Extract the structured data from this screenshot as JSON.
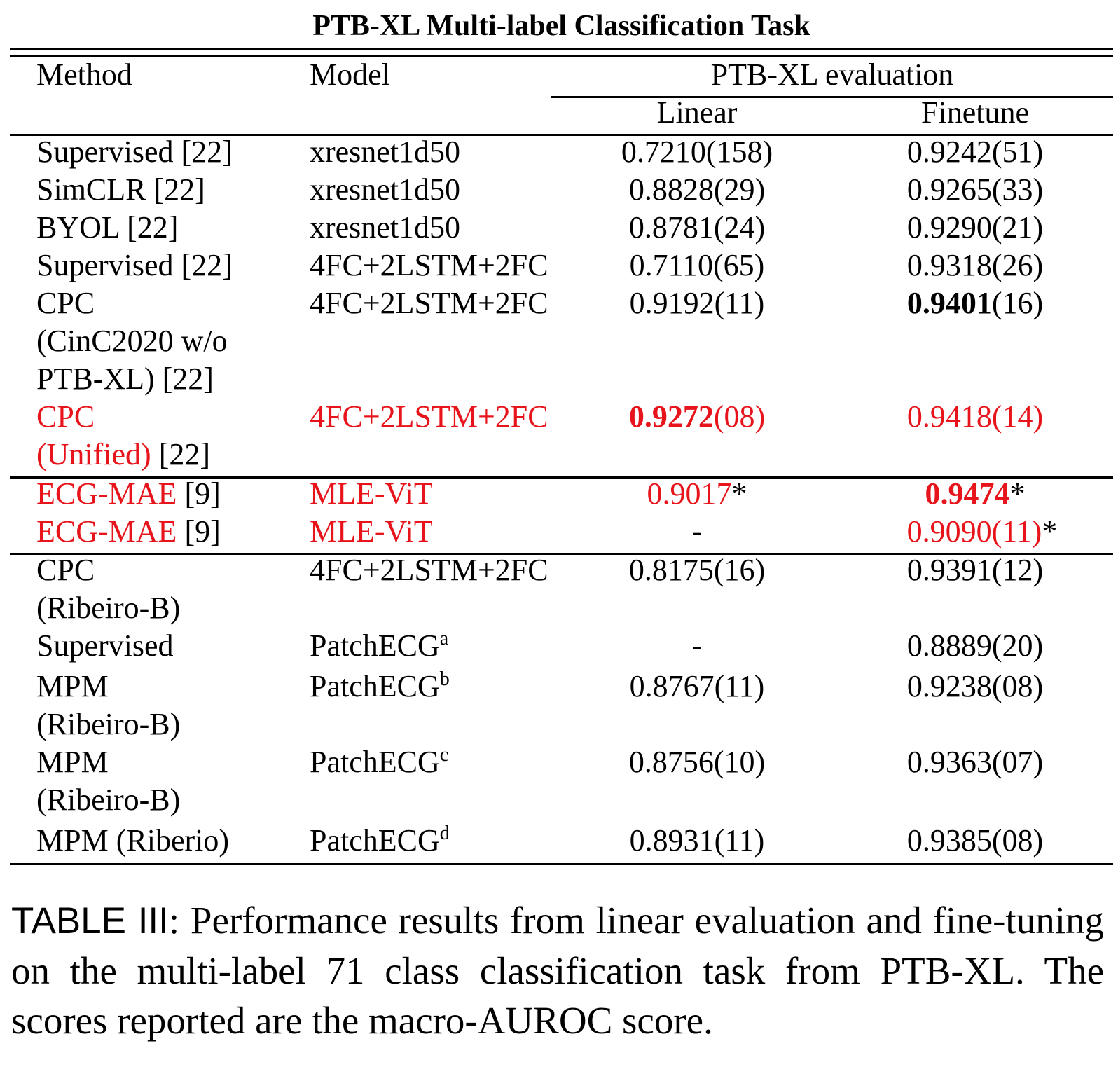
{
  "title": "PTB-XL Multi-label Classification Task",
  "header": {
    "method": "Method",
    "model": "Model",
    "group": "PTB-XL evaluation",
    "linear": "Linear",
    "finetune": "Finetune"
  },
  "rows": [
    {
      "method": [
        "Supervised [22]"
      ],
      "model": "xresnet1d50",
      "linear": "0.7210(158)",
      "finetune": "0.9242(51)"
    },
    {
      "method": [
        "SimCLR [22]"
      ],
      "model": "xresnet1d50",
      "linear": "0.8828(29)",
      "finetune": "0.9265(33)"
    },
    {
      "method": [
        "BYOL [22]"
      ],
      "model": "xresnet1d50",
      "linear": "0.8781(24)",
      "finetune": "0.9290(21)"
    },
    {
      "method": [
        "Supervised [22]"
      ],
      "model": "4FC+2LSTM+2FC",
      "linear": "0.7110(65)",
      "finetune": "0.9318(26)"
    },
    {
      "method": [
        "CPC",
        "(CinC2020 w/o",
        "PTB-XL) [22]"
      ],
      "model": "4FC+2LSTM+2FC",
      "linear": "0.9192(11)",
      "finetune_bold": "0.9401",
      "finetune_rest": "(16)"
    },
    {
      "method": [
        "CPC",
        "(Unified)"
      ],
      "method_ref": "[22]",
      "model": "4FC+2LSTM+2FC",
      "linear_bold": "0.9272",
      "linear_rest": "(08)",
      "finetune": "0.9418(14)"
    },
    {
      "method": [
        "ECG-MAE"
      ],
      "method_ref": "[9]",
      "model": "MLE-ViT",
      "linear": "0.9017",
      "linear_mark": "*",
      "finetune_bold": "0.9474",
      "finetune_mark": "*"
    },
    {
      "method": [
        "ECG-MAE"
      ],
      "method_ref": "[9]",
      "model": "MLE-ViT",
      "linear": "-",
      "finetune": "0.9090(11)",
      "finetune_mark": "*"
    },
    {
      "method": [
        "CPC",
        "(Ribeiro-B)"
      ],
      "model": "4FC+2LSTM+2FC",
      "linear": "0.8175(16)",
      "finetune": "0.9391(12)"
    },
    {
      "method": [
        "Supervised"
      ],
      "model": "PatchECG",
      "model_sup": "a",
      "linear": "-",
      "finetune": "0.8889(20)"
    },
    {
      "method": [
        "MPM",
        "(Ribeiro-B)"
      ],
      "model": "PatchECG",
      "model_sup": "b",
      "linear": "0.8767(11)",
      "finetune": "0.9238(08)"
    },
    {
      "method": [
        "MPM",
        "(Ribeiro-B)"
      ],
      "model": "PatchECG",
      "model_sup": "c",
      "linear": "0.8756(10)",
      "finetune": "0.9363(07)"
    },
    {
      "method": [
        "MPM (Riberio)"
      ],
      "model": "PatchECG",
      "model_sup": "d",
      "linear": "0.8931(11)",
      "finetune": "0.9385(08)"
    }
  ],
  "caption": {
    "label": "TABLE III",
    "text": ": Performance results from linear evaluation and fine-tuning on the multi-label 71 class classification task from PTB-XL. The scores reported are the macro-AUROC score."
  },
  "colors": {
    "highlight": "#e8141c",
    "text": "#000000"
  }
}
